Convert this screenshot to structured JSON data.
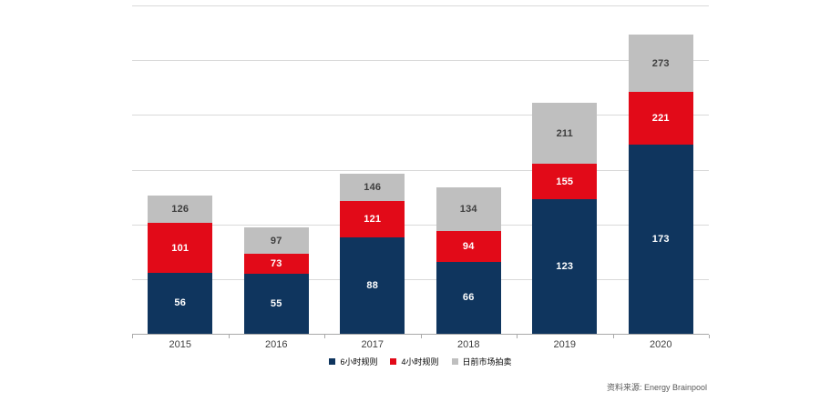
{
  "chart_data": {
    "type": "bar",
    "stacked": true,
    "title": "",
    "categories": [
      "2015",
      "2016",
      "2017",
      "2018",
      "2019",
      "2020"
    ],
    "series": [
      {
        "name": "6小时规则",
        "color": "#0f355e",
        "label_color": "#ffffff",
        "cumulative_values": [
          56,
          55,
          88,
          66,
          123,
          173
        ]
      },
      {
        "name": "4小时规则",
        "color": "#e20a18",
        "label_color": "#ffffff",
        "cumulative_values": [
          101,
          73,
          121,
          94,
          155,
          221
        ]
      },
      {
        "name": "日前市场拍卖",
        "color": "#bfbfbf",
        "label_color": "#3f3f3f",
        "cumulative_values": [
          126,
          97,
          146,
          134,
          211,
          273
        ]
      }
    ],
    "value_labels_shown": true,
    "value_labels_are_cumulative_totals": true,
    "ylim": [
      0,
      300
    ],
    "grid_step": 50,
    "grid": true,
    "y_tick_labels_shown": false,
    "legend_position": "bottom-center",
    "colors": {
      "gridline": "#d9d9d9",
      "axis": "#a9a9a9",
      "axis_label": "#404040"
    }
  },
  "source": {
    "text": "资料来源: Energy Brainpool"
  }
}
